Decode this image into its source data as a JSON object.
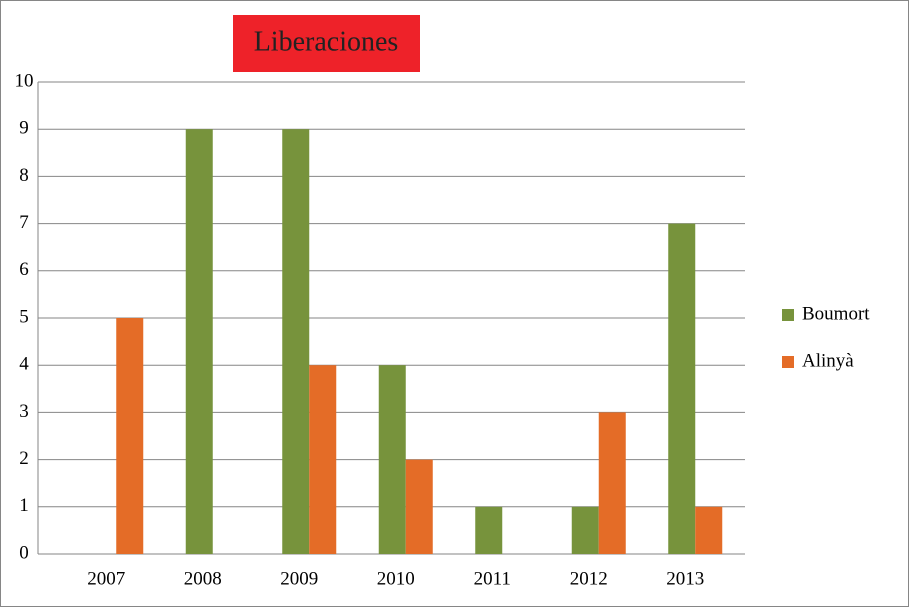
{
  "chart_data": {
    "type": "bar",
    "title": "Liberaciones",
    "title_background": "#ee2229",
    "categories": [
      "2007",
      "2008",
      "2009",
      "2010",
      "2011",
      "2012",
      "2013"
    ],
    "series": [
      {
        "name": "Boumort",
        "color": "#77933c",
        "values": [
          0,
          9,
          9,
          4,
          1,
          1,
          7
        ]
      },
      {
        "name": "Alinyà",
        "color": "#e46c27",
        "values": [
          5,
          0,
          4,
          2,
          0,
          3,
          1
        ]
      }
    ],
    "ylim": [
      0,
      10
    ],
    "yticks": [
      0,
      1,
      2,
      3,
      4,
      5,
      6,
      7,
      8,
      9,
      10
    ],
    "grid": true,
    "legend": "right"
  }
}
